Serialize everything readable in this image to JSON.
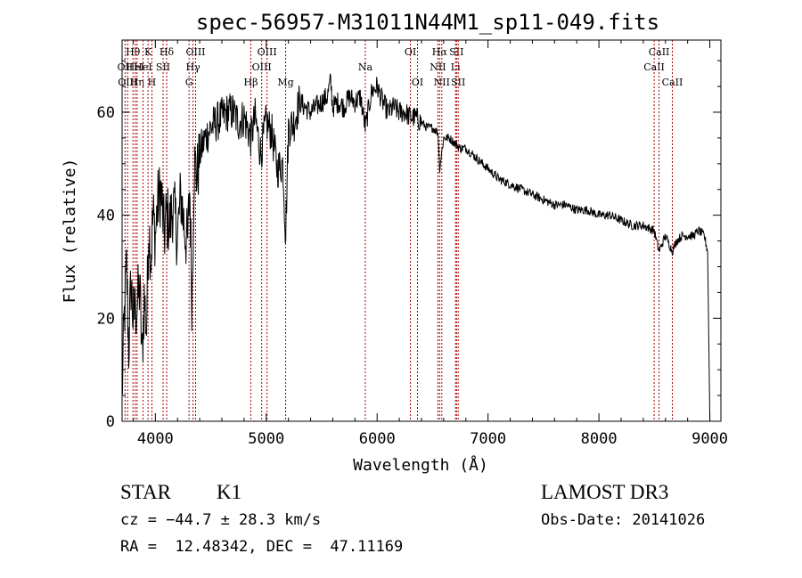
{
  "chart_data": {
    "type": "line",
    "title": "spec-56957-M31011N44M1_sp11-049.fits",
    "xlabel": "Wavelength (Å)",
    "ylabel": "Flux (relative)",
    "xlim": [
      3700,
      9100
    ],
    "ylim": [
      0,
      74
    ],
    "x_ticks": [
      {
        "value": 4000,
        "label": "4000"
      },
      {
        "value": 5000,
        "label": "5000"
      },
      {
        "value": 6000,
        "label": "6000"
      },
      {
        "value": 7000,
        "label": "7000"
      },
      {
        "value": 8000,
        "label": "8000"
      },
      {
        "value": 9000,
        "label": "9000"
      }
    ],
    "y_ticks": [
      {
        "value": 0,
        "label": "0"
      },
      {
        "value": 20,
        "label": "20"
      },
      {
        "value": 40,
        "label": "40"
      },
      {
        "value": 60,
        "label": "60"
      }
    ],
    "series": [
      {
        "name": "flux",
        "x": [
          3700,
          3720,
          3740,
          3760,
          3780,
          3800,
          3830,
          3860,
          3880,
          3900,
          3920,
          3940,
          3960,
          3980,
          4000,
          4020,
          4050,
          4080,
          4100,
          4130,
          4160,
          4200,
          4230,
          4260,
          4290,
          4310,
          4330,
          4350,
          4380,
          4400,
          4450,
          4500,
          4550,
          4600,
          4650,
          4700,
          4750,
          4800,
          4861,
          4900,
          4950,
          5000,
          5050,
          5100,
          5150,
          5175,
          5200,
          5250,
          5300,
          5350,
          5400,
          5450,
          5500,
          5550,
          5580,
          5600,
          5650,
          5700,
          5750,
          5800,
          5850,
          5893,
          5950,
          6000,
          6050,
          6100,
          6150,
          6200,
          6250,
          6300,
          6350,
          6400,
          6450,
          6500,
          6550,
          6563,
          6600,
          6650,
          6700,
          6750,
          6800,
          6900,
          7000,
          7100,
          7200,
          7300,
          7400,
          7500,
          7600,
          7700,
          7800,
          7900,
          8000,
          8100,
          8200,
          8300,
          8400,
          8498,
          8542,
          8600,
          8662,
          8700,
          8750,
          8800,
          8850,
          8900,
          8950,
          8980,
          9000
        ],
        "y": [
          5,
          20,
          30,
          14,
          27,
          20,
          22,
          26,
          12,
          24,
          18,
          38,
          32,
          40,
          36,
          42,
          45,
          36,
          40,
          38,
          42,
          36,
          44,
          38,
          34,
          46,
          22,
          50,
          48,
          52,
          55,
          57,
          58,
          59,
          60,
          60,
          58,
          59,
          55,
          59,
          52,
          58,
          56,
          49,
          50,
          36,
          57,
          58,
          62,
          61,
          60,
          61,
          62,
          63,
          66,
          61,
          62,
          61,
          63,
          62,
          63,
          57,
          64,
          65,
          62,
          60,
          61,
          60,
          60,
          59,
          59,
          58,
          57,
          57,
          56,
          49,
          55,
          55,
          54,
          53,
          53,
          51,
          49,
          47,
          46,
          45,
          44,
          43,
          42,
          42,
          41,
          41,
          40,
          40,
          39,
          38,
          38,
          37,
          33,
          36,
          33,
          35,
          36,
          36,
          36,
          37,
          36,
          33,
          0
        ]
      }
    ],
    "lines": [
      {
        "wl": 3727,
        "label": "OII",
        "row": 2
      },
      {
        "wl": 3750,
        "label": "OIII",
        "row": 3
      },
      {
        "wl": 3798,
        "label": "Hθ",
        "row": 1
      },
      {
        "wl": 3819,
        "label": "HeI",
        "row": 2
      },
      {
        "wl": 3835,
        "label": "Hη",
        "row": 3
      },
      {
        "wl": 3889,
        "label": "HeI",
        "row": 2
      },
      {
        "wl": 3934,
        "label": "K",
        "row": 1
      },
      {
        "wl": 3969,
        "label": "H",
        "row": 3
      },
      {
        "wl": 4070,
        "label": "SII",
        "row": 2
      },
      {
        "wl": 4102,
        "label": "Hδ",
        "row": 1
      },
      {
        "wl": 4304,
        "label": "G",
        "row": 3
      },
      {
        "wl": 4340,
        "label": "Hγ",
        "row": 2
      },
      {
        "wl": 4363,
        "label": "OIII",
        "row": 1
      },
      {
        "wl": 4861,
        "label": "Hβ",
        "row": 3
      },
      {
        "wl": 4959,
        "label": "OIII",
        "row": 2
      },
      {
        "wl": 5007,
        "label": "OIII",
        "row": 1
      },
      {
        "wl": 5175,
        "label": "Mg",
        "row": 3
      },
      {
        "wl": 5893,
        "label": "Na",
        "row": 2
      },
      {
        "wl": 6300,
        "label": "OI",
        "row": 1
      },
      {
        "wl": 6364,
        "label": "OI",
        "row": 3
      },
      {
        "wl": 6548,
        "label": "NII",
        "row": 2
      },
      {
        "wl": 6563,
        "label": "Hα",
        "row": 1
      },
      {
        "wl": 6583,
        "label": "NII",
        "row": 3
      },
      {
        "wl": 6707,
        "label": "Li",
        "row": 2
      },
      {
        "wl": 6716,
        "label": "SII",
        "row": 1
      },
      {
        "wl": 6731,
        "label": "SII",
        "row": 3
      },
      {
        "wl": 8498,
        "label": "CaII",
        "row": 2
      },
      {
        "wl": 8542,
        "label": "CaII",
        "row": 1
      },
      {
        "wl": 8662,
        "label": "CaII",
        "row": 3
      }
    ]
  },
  "info": {
    "object_class": "STAR",
    "subclass": "K1",
    "survey": "LAMOST DR3",
    "cz": "cz = −44.7 ± 28.3 km/s",
    "obs_date": "Obs-Date: 20141026",
    "radec": "RA =  12.48342, DEC =  47.11169"
  },
  "colors": {
    "line": "#000000",
    "marker": "#aa0000"
  }
}
